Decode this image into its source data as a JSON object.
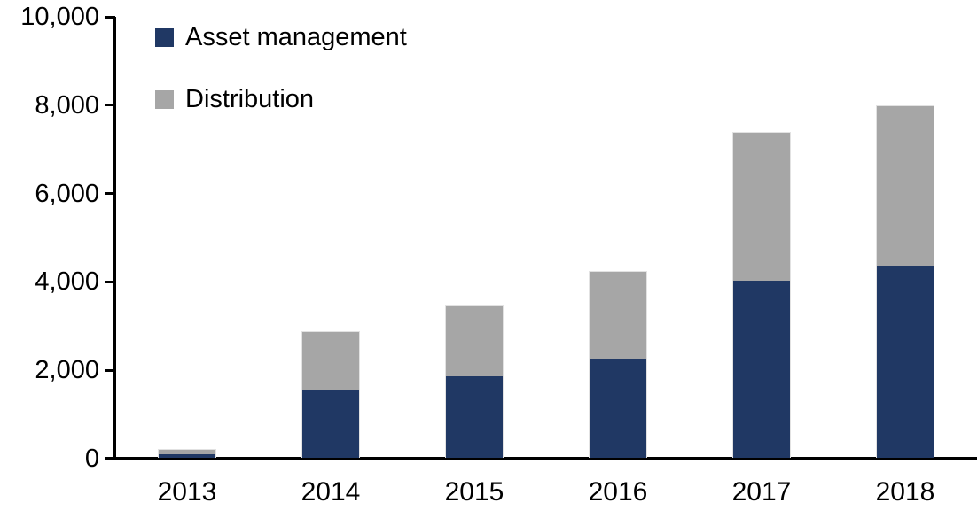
{
  "chart_data": {
    "type": "bar",
    "stacked": true,
    "title": "",
    "xlabel": "",
    "ylabel": "",
    "categories": [
      "2013",
      "2014",
      "2015",
      "2016",
      "2017",
      "2018"
    ],
    "series": [
      {
        "name": "Asset management",
        "color": "#203864",
        "values": [
          90,
          1550,
          1850,
          2250,
          4000,
          4350
        ]
      },
      {
        "name": "Distribution",
        "color": "#A6A6A6",
        "values": [
          100,
          1300,
          1600,
          1950,
          3350,
          3600
        ]
      }
    ],
    "totals": [
      190,
      2850,
      3450,
      4200,
      7350,
      7950
    ],
    "ylim": [
      0,
      10000
    ],
    "yticks": [
      0,
      2000,
      4000,
      6000,
      8000,
      10000
    ],
    "ytick_labels": [
      "0",
      "2,000",
      "4,000",
      "6,000",
      "8,000",
      "10,000"
    ],
    "grid": false,
    "legend_position": "top-left-inside"
  },
  "colors": {
    "axis": "#000000",
    "text": "#000000",
    "background": "#FFFFFF",
    "bar_border": "#E2E2E2"
  }
}
